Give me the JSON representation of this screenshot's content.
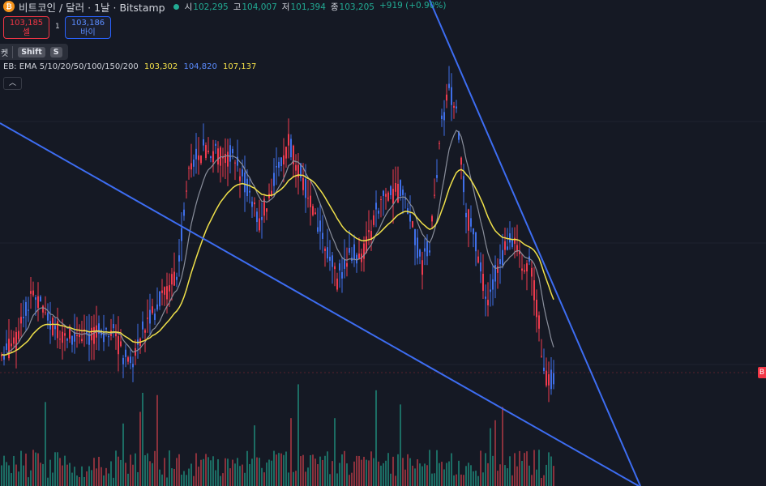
{
  "header": {
    "coin_symbol": "₿",
    "title": "비트코인 / 달러 · 1날 · Bitstamp",
    "ohlc": [
      {
        "key": "시",
        "value": "102,295"
      },
      {
        "key": "고",
        "value": "104,007"
      },
      {
        "key": "저",
        "value": "101,394"
      },
      {
        "key": "종",
        "value": "103,205"
      }
    ],
    "change": "+919 (+0.90%)"
  },
  "trade": {
    "sell_price": "103,185",
    "sell_label": "셀",
    "spread": "1",
    "buy_price": "103,186",
    "buy_label": "바이"
  },
  "tooltip": {
    "label": "켓",
    "key1": "Shift",
    "key2": "S"
  },
  "indicator": {
    "label": "EB: EMA 5/10/20/50/100/150/200",
    "v1": "103,302",
    "v2": "104,820",
    "v3": "107,137"
  },
  "collapse_icon": "chevron-up-icon",
  "price_tag": "B",
  "colors": {
    "up": "#ef3b4e",
    "down": "#3f6fe8",
    "ema_yellow": "#f0e14a",
    "ema_gray": "#8a8f9c",
    "trendline": "#3d6df2",
    "volume_up": "#1f8a7a",
    "volume_down": "#b23a44"
  }
}
